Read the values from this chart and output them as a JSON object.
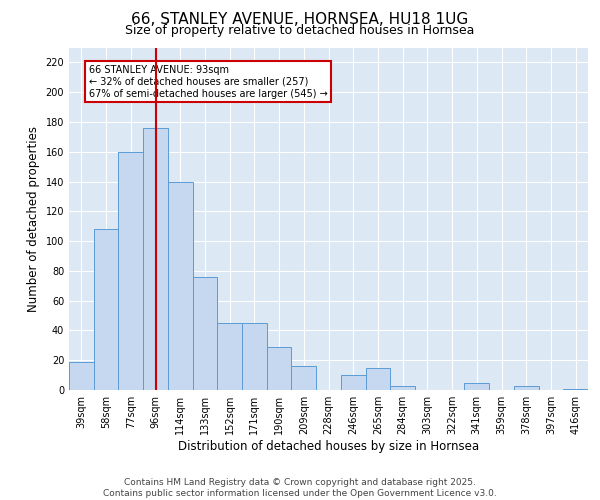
{
  "title": "66, STANLEY AVENUE, HORNSEA, HU18 1UG",
  "subtitle": "Size of property relative to detached houses in Hornsea",
  "xlabel": "Distribution of detached houses by size in Hornsea",
  "ylabel": "Number of detached properties",
  "categories": [
    "39sqm",
    "58sqm",
    "77sqm",
    "96sqm",
    "114sqm",
    "133sqm",
    "152sqm",
    "171sqm",
    "190sqm",
    "209sqm",
    "228sqm",
    "246sqm",
    "265sqm",
    "284sqm",
    "303sqm",
    "322sqm",
    "341sqm",
    "359sqm",
    "378sqm",
    "397sqm",
    "416sqm"
  ],
  "values": [
    19,
    108,
    160,
    176,
    140,
    76,
    45,
    45,
    29,
    16,
    0,
    10,
    15,
    3,
    0,
    0,
    5,
    0,
    3,
    0,
    1
  ],
  "bar_color": "#c5d8f0",
  "bar_edge_color": "#5b9bd5",
  "vline_x": 3,
  "vline_color": "#cc0000",
  "annotation_text": "66 STANLEY AVENUE: 93sqm\n← 32% of detached houses are smaller (257)\n67% of semi-detached houses are larger (545) →",
  "annotation_box_color": "#cc0000",
  "annotation_text_color": "#000000",
  "ylim": [
    0,
    230
  ],
  "yticks": [
    0,
    20,
    40,
    60,
    80,
    100,
    120,
    140,
    160,
    180,
    200,
    220
  ],
  "background_color": "#dce9f5",
  "footer_text": "Contains HM Land Registry data © Crown copyright and database right 2025.\nContains public sector information licensed under the Open Government Licence v3.0.",
  "title_fontsize": 11,
  "subtitle_fontsize": 9,
  "axis_label_fontsize": 8.5,
  "tick_fontsize": 7,
  "footer_fontsize": 6.5
}
